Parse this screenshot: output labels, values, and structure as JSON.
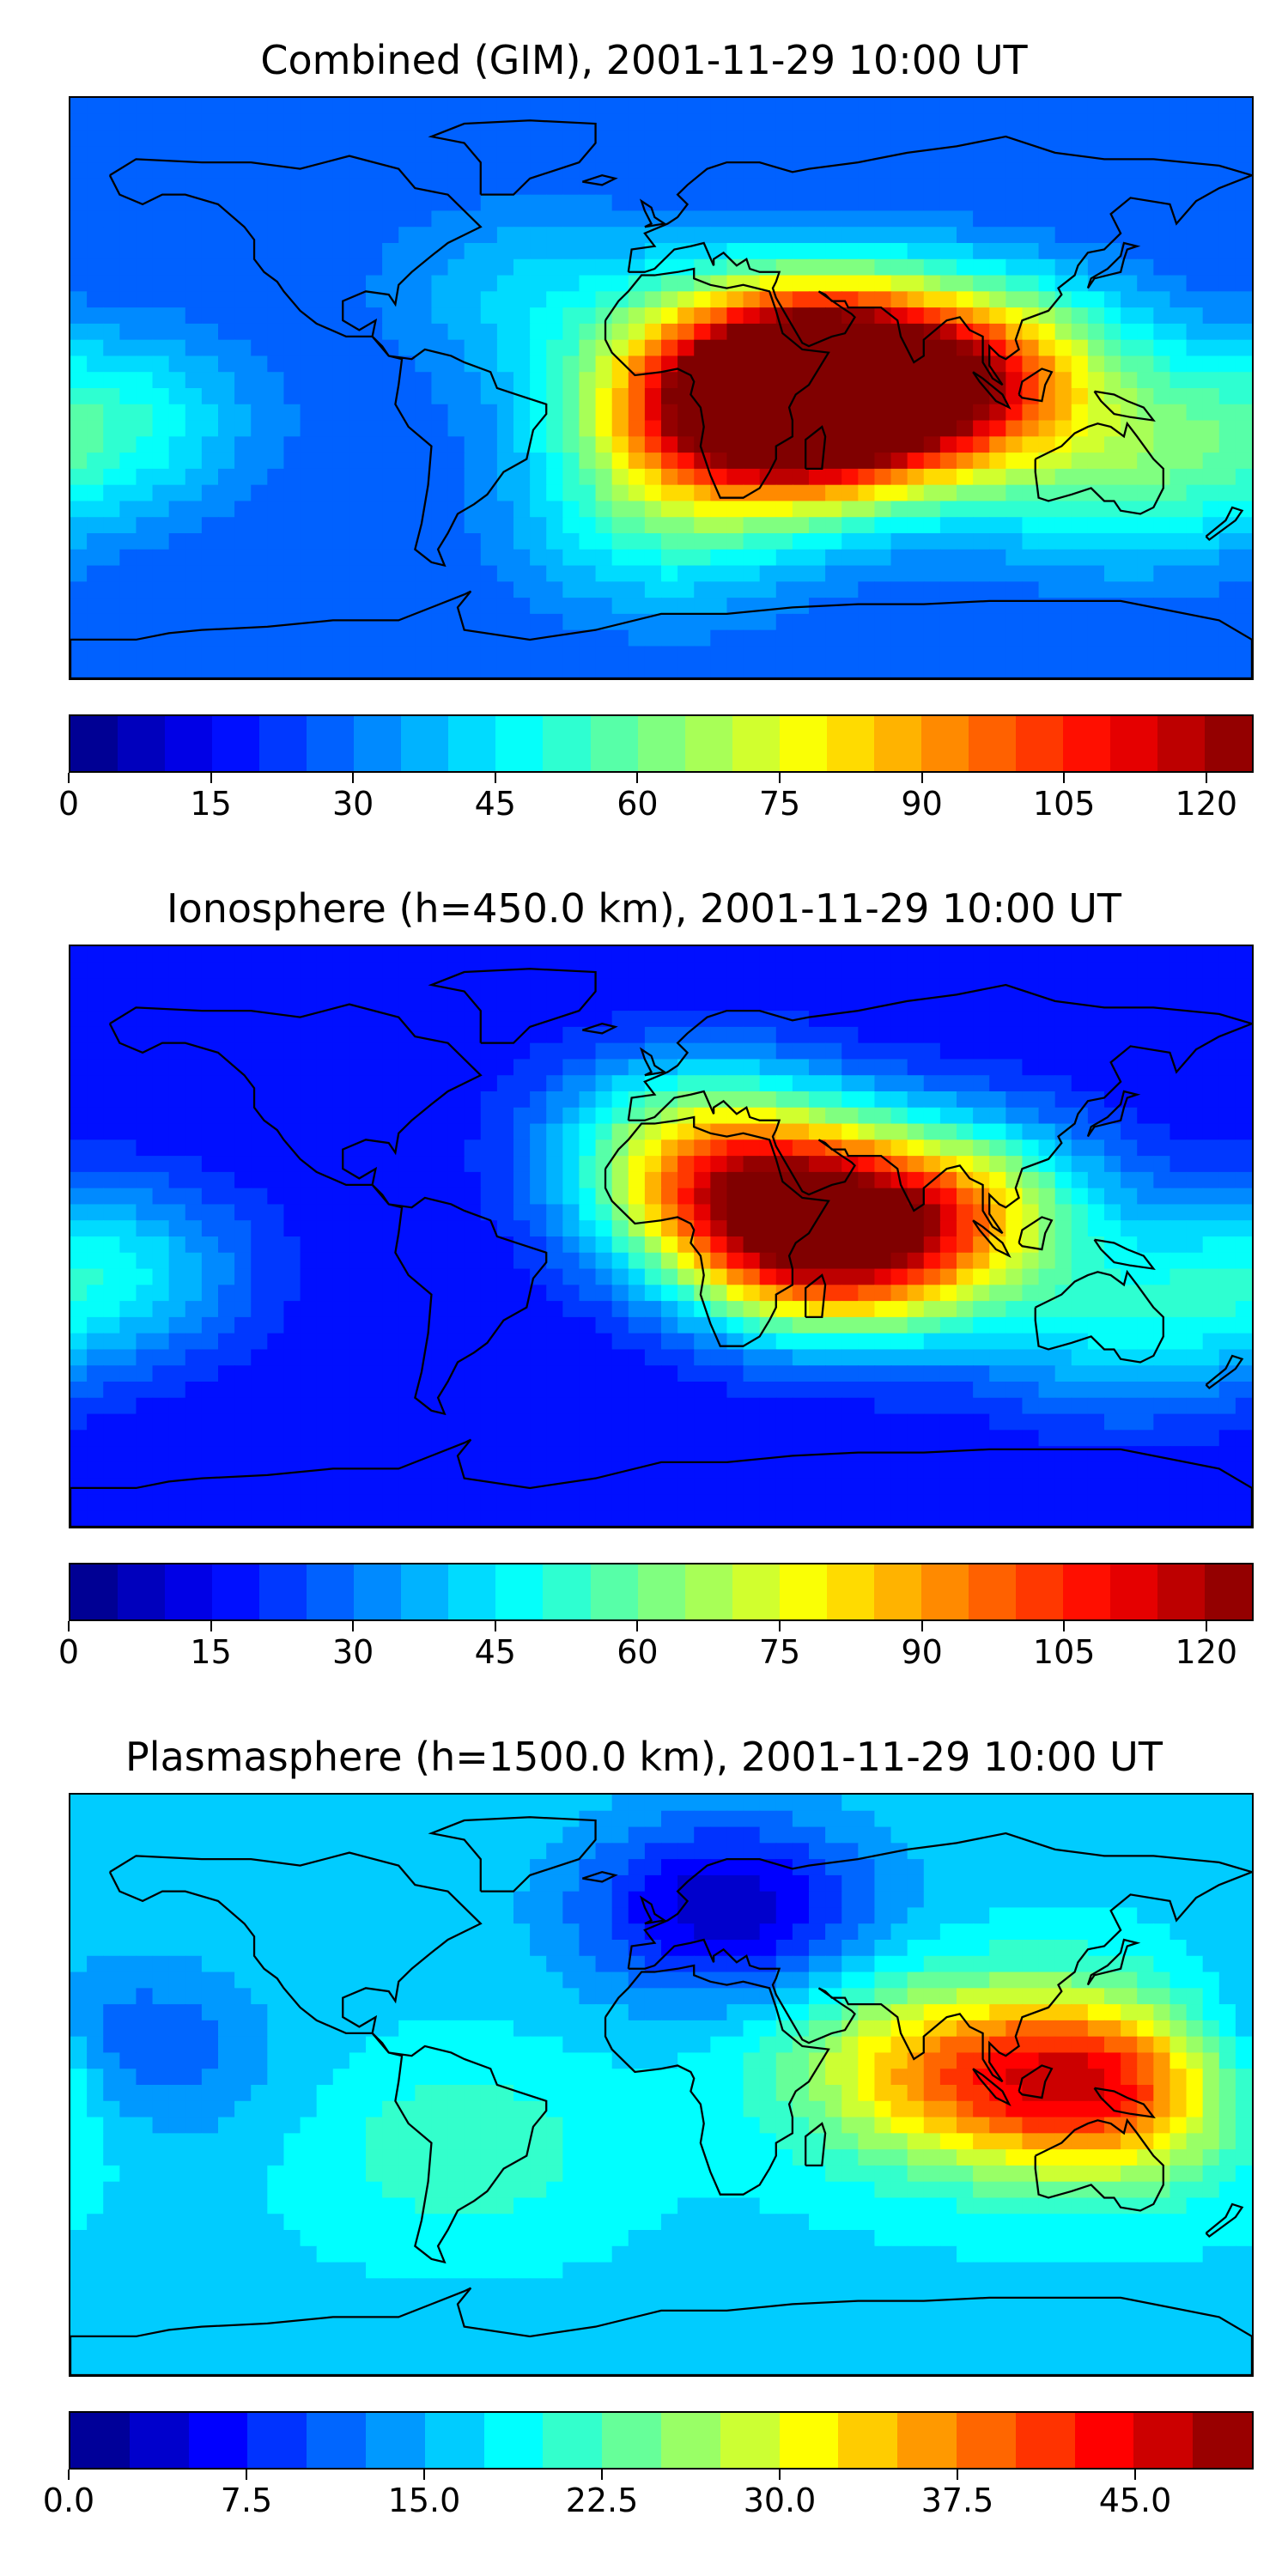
{
  "panels": [
    {
      "title": "Combined (GIM), 2001-11-29 10:00 UT",
      "colorbar": {
        "vmin": 0,
        "vmax": 125,
        "levels": 25,
        "ticks": [
          0,
          15,
          30,
          45,
          60,
          75,
          90,
          105,
          120
        ],
        "tick_labels": [
          "0",
          "15",
          "30",
          "45",
          "60",
          "75",
          "90",
          "105",
          "120"
        ]
      },
      "field": {
        "background": 25,
        "blobs": [
          {
            "lon": 55,
            "lat": -5,
            "value": 120
          },
          {
            "lon": 40,
            "lat": 10,
            "value": 85
          },
          {
            "lon": 15,
            "lat": -10,
            "value": 80
          },
          {
            "lon": 100,
            "lat": 5,
            "value": 80
          },
          {
            "lon": -170,
            "lat": -10,
            "value": 50
          },
          {
            "lon": -40,
            "lat": 30,
            "value": 40
          },
          {
            "lon": 0,
            "lat": -45,
            "value": 45
          },
          {
            "lon": 140,
            "lat": -30,
            "value": 50
          }
        ]
      }
    },
    {
      "title": "Ionosphere  (h=450.0 km), 2001-11-29 10:00 UT",
      "colorbar": {
        "vmin": 0,
        "vmax": 125,
        "levels": 25,
        "ticks": [
          0,
          15,
          30,
          45,
          60,
          75,
          90,
          105,
          120
        ],
        "tick_labels": [
          "0",
          "15",
          "30",
          "45",
          "60",
          "75",
          "90",
          "105",
          "120"
        ]
      },
      "field": {
        "background": 15,
        "blobs": [
          {
            "lon": 55,
            "lat": -5,
            "value": 85
          },
          {
            "lon": 30,
            "lat": 10,
            "value": 75
          },
          {
            "lon": 90,
            "lat": 10,
            "value": 65
          },
          {
            "lon": -170,
            "lat": -10,
            "value": 45
          },
          {
            "lon": 10,
            "lat": 30,
            "value": 55
          },
          {
            "lon": 140,
            "lat": -30,
            "value": 40
          }
        ]
      }
    },
    {
      "title": "Plasmasphere (h=1500.0 km), 2001-11-29 10:00 UT",
      "colorbar": {
        "vmin": 0,
        "vmax": 50,
        "levels": 20,
        "ticks": [
          0,
          7.5,
          15,
          22.5,
          30,
          37.5,
          45
        ],
        "tick_labels": [
          "0.0",
          "7.5",
          "15.0",
          "22.5",
          "30.0",
          "37.5",
          "45.0"
        ]
      },
      "field": {
        "background": 17,
        "blobs": [
          {
            "lon": 135,
            "lat": 0,
            "value": 44
          },
          {
            "lon": 80,
            "lat": 5,
            "value": 32
          },
          {
            "lon": -60,
            "lat": -20,
            "value": 22
          },
          {
            "lon": -170,
            "lat": 10,
            "value": 8
          },
          {
            "lon": 20,
            "lat": 55,
            "value": 3
          }
        ]
      }
    }
  ]
}
